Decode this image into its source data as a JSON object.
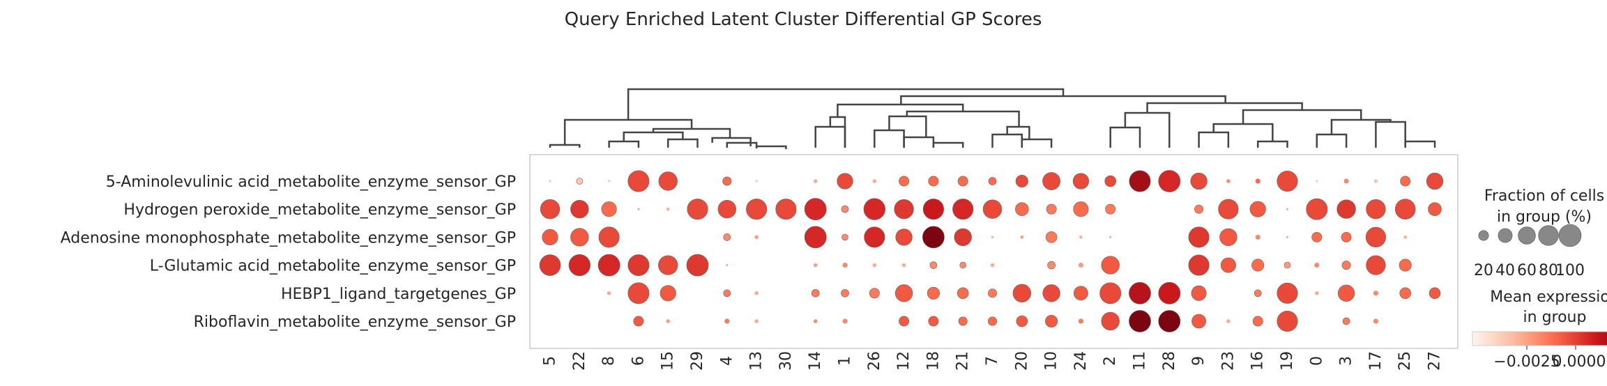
{
  "chart_data": {
    "type": "dotplot",
    "title": "Query Enriched Latent Cluster Differential GP Scores",
    "rows": [
      "5-Aminolevulinic acid_metabolite_enzyme_sensor_GP",
      "Hydrogen peroxide_metabolite_enzyme_sensor_GP",
      "Adenosine monophosphate_metabolite_enzyme_sensor_GP",
      "L-Glutamic acid_metabolite_enzyme_sensor_GP",
      "HEBP1_ligand_targetgenes_GP",
      "Riboflavin_metabolite_enzyme_sensor_GP"
    ],
    "columns": [
      "5",
      "22",
      "8",
      "6",
      "15",
      "29",
      "4",
      "13",
      "30",
      "14",
      "1",
      "26",
      "12",
      "18",
      "21",
      "7",
      "20",
      "10",
      "24",
      "2",
      "11",
      "28",
      "9",
      "23",
      "16",
      "19",
      "0",
      "3",
      "17",
      "25",
      "27"
    ],
    "fraction_pct": [
      [
        1,
        8,
        1,
        90,
        70,
        0,
        15,
        1,
        0,
        3,
        50,
        3,
        20,
        20,
        20,
        12,
        30,
        62,
        50,
        25,
        90,
        95,
        55,
        3,
        5,
        85,
        1,
        5,
        3,
        20,
        55
      ],
      [
        75,
        65,
        45,
        1,
        2,
        85,
        65,
        85,
        85,
        95,
        10,
        92,
        75,
        85,
        85,
        70,
        35,
        20,
        45,
        20,
        0,
        0,
        15,
        80,
        50,
        1,
        90,
        70,
        75,
        82,
        35
      ],
      [
        50,
        65,
        85,
        0,
        0,
        0,
        10,
        3,
        0,
        95,
        8,
        85,
        55,
        95,
        60,
        1,
        2,
        25,
        2,
        1,
        0,
        0,
        85,
        60,
        5,
        1,
        20,
        20,
        80,
        2,
        0
      ],
      [
        88,
        92,
        95,
        90,
        75,
        95,
        1,
        0,
        0,
        3,
        5,
        3,
        3,
        10,
        8,
        3,
        0,
        12,
        5,
        65,
        0,
        0,
        85,
        45,
        30,
        8,
        5,
        15,
        75,
        30,
        0
      ],
      [
        0,
        0,
        3,
        90,
        50,
        0,
        10,
        3,
        0,
        12,
        12,
        20,
        60,
        30,
        25,
        15,
        65,
        60,
        40,
        90,
        95,
        95,
        45,
        0,
        10,
        85,
        3,
        55,
        5,
        25,
        25
      ],
      [
        0,
        0,
        0,
        20,
        3,
        0,
        5,
        3,
        0,
        3,
        5,
        0,
        20,
        20,
        15,
        15,
        25,
        30,
        5,
        65,
        95,
        95,
        40,
        3,
        20,
        85,
        0,
        10,
        5,
        0,
        0
      ]
    ],
    "mean_expression": [
      [
        0.2,
        0.2,
        0.2,
        0.6,
        0.6,
        0.2,
        0.5,
        0.2,
        0.2,
        0.3,
        0.6,
        0.3,
        0.5,
        0.5,
        0.5,
        0.5,
        0.6,
        0.6,
        0.6,
        0.6,
        0.85,
        0.7,
        0.6,
        0.4,
        0.5,
        0.6,
        0.2,
        0.4,
        0.2,
        0.5,
        0.6
      ],
      [
        0.6,
        0.65,
        0.5,
        0.3,
        0.3,
        0.6,
        0.6,
        0.6,
        0.6,
        0.7,
        0.4,
        0.7,
        0.65,
        0.75,
        0.7,
        0.6,
        0.5,
        0.45,
        0.5,
        0.45,
        0.2,
        0.2,
        0.45,
        0.6,
        0.55,
        0.3,
        0.6,
        0.65,
        0.6,
        0.6,
        0.55
      ],
      [
        0.55,
        0.55,
        0.6,
        0.2,
        0.2,
        0.2,
        0.4,
        0.35,
        0.2,
        0.7,
        0.4,
        0.7,
        0.6,
        0.95,
        0.65,
        0.3,
        0.35,
        0.45,
        0.3,
        0.3,
        0.2,
        0.2,
        0.65,
        0.55,
        0.4,
        0.3,
        0.5,
        0.5,
        0.6,
        0.3,
        0.2
      ],
      [
        0.65,
        0.7,
        0.7,
        0.65,
        0.6,
        0.65,
        0.3,
        0.2,
        0.2,
        0.35,
        0.4,
        0.3,
        0.3,
        0.4,
        0.4,
        0.3,
        0.2,
        0.4,
        0.35,
        0.55,
        0.2,
        0.2,
        0.65,
        0.55,
        0.5,
        0.35,
        0.4,
        0.45,
        0.6,
        0.5,
        0.2
      ],
      [
        0.2,
        0.2,
        0.3,
        0.6,
        0.55,
        0.2,
        0.45,
        0.3,
        0.2,
        0.45,
        0.45,
        0.45,
        0.55,
        0.5,
        0.5,
        0.45,
        0.6,
        0.6,
        0.55,
        0.6,
        0.8,
        0.75,
        0.55,
        0.2,
        0.45,
        0.6,
        0.3,
        0.55,
        0.4,
        0.5,
        0.55
      ],
      [
        0.2,
        0.2,
        0.2,
        0.55,
        0.35,
        0.2,
        0.45,
        0.3,
        0.2,
        0.4,
        0.4,
        0.2,
        0.55,
        0.55,
        0.5,
        0.5,
        0.55,
        0.55,
        0.45,
        0.6,
        0.95,
        0.95,
        0.55,
        0.3,
        0.5,
        0.6,
        0.2,
        0.45,
        0.4,
        0.2,
        0.2
      ]
    ],
    "size_legend": {
      "title": [
        "Fraction of cells",
        "in group (%)"
      ],
      "values": [
        20,
        40,
        60,
        80,
        100
      ],
      "labels": [
        "20",
        "40",
        "60",
        "80",
        "100"
      ]
    },
    "color_legend": {
      "title": [
        "Mean expression",
        "in group"
      ],
      "tick_labels": [
        "−0.0025",
        "0.0000"
      ],
      "colormap": "Reds"
    },
    "dendrogram": "hierarchical clustering of columns"
  },
  "colors": {
    "border": "#cccccc",
    "dendrogram": "#444444",
    "legend_dot": "#888888",
    "text": "#262626"
  }
}
